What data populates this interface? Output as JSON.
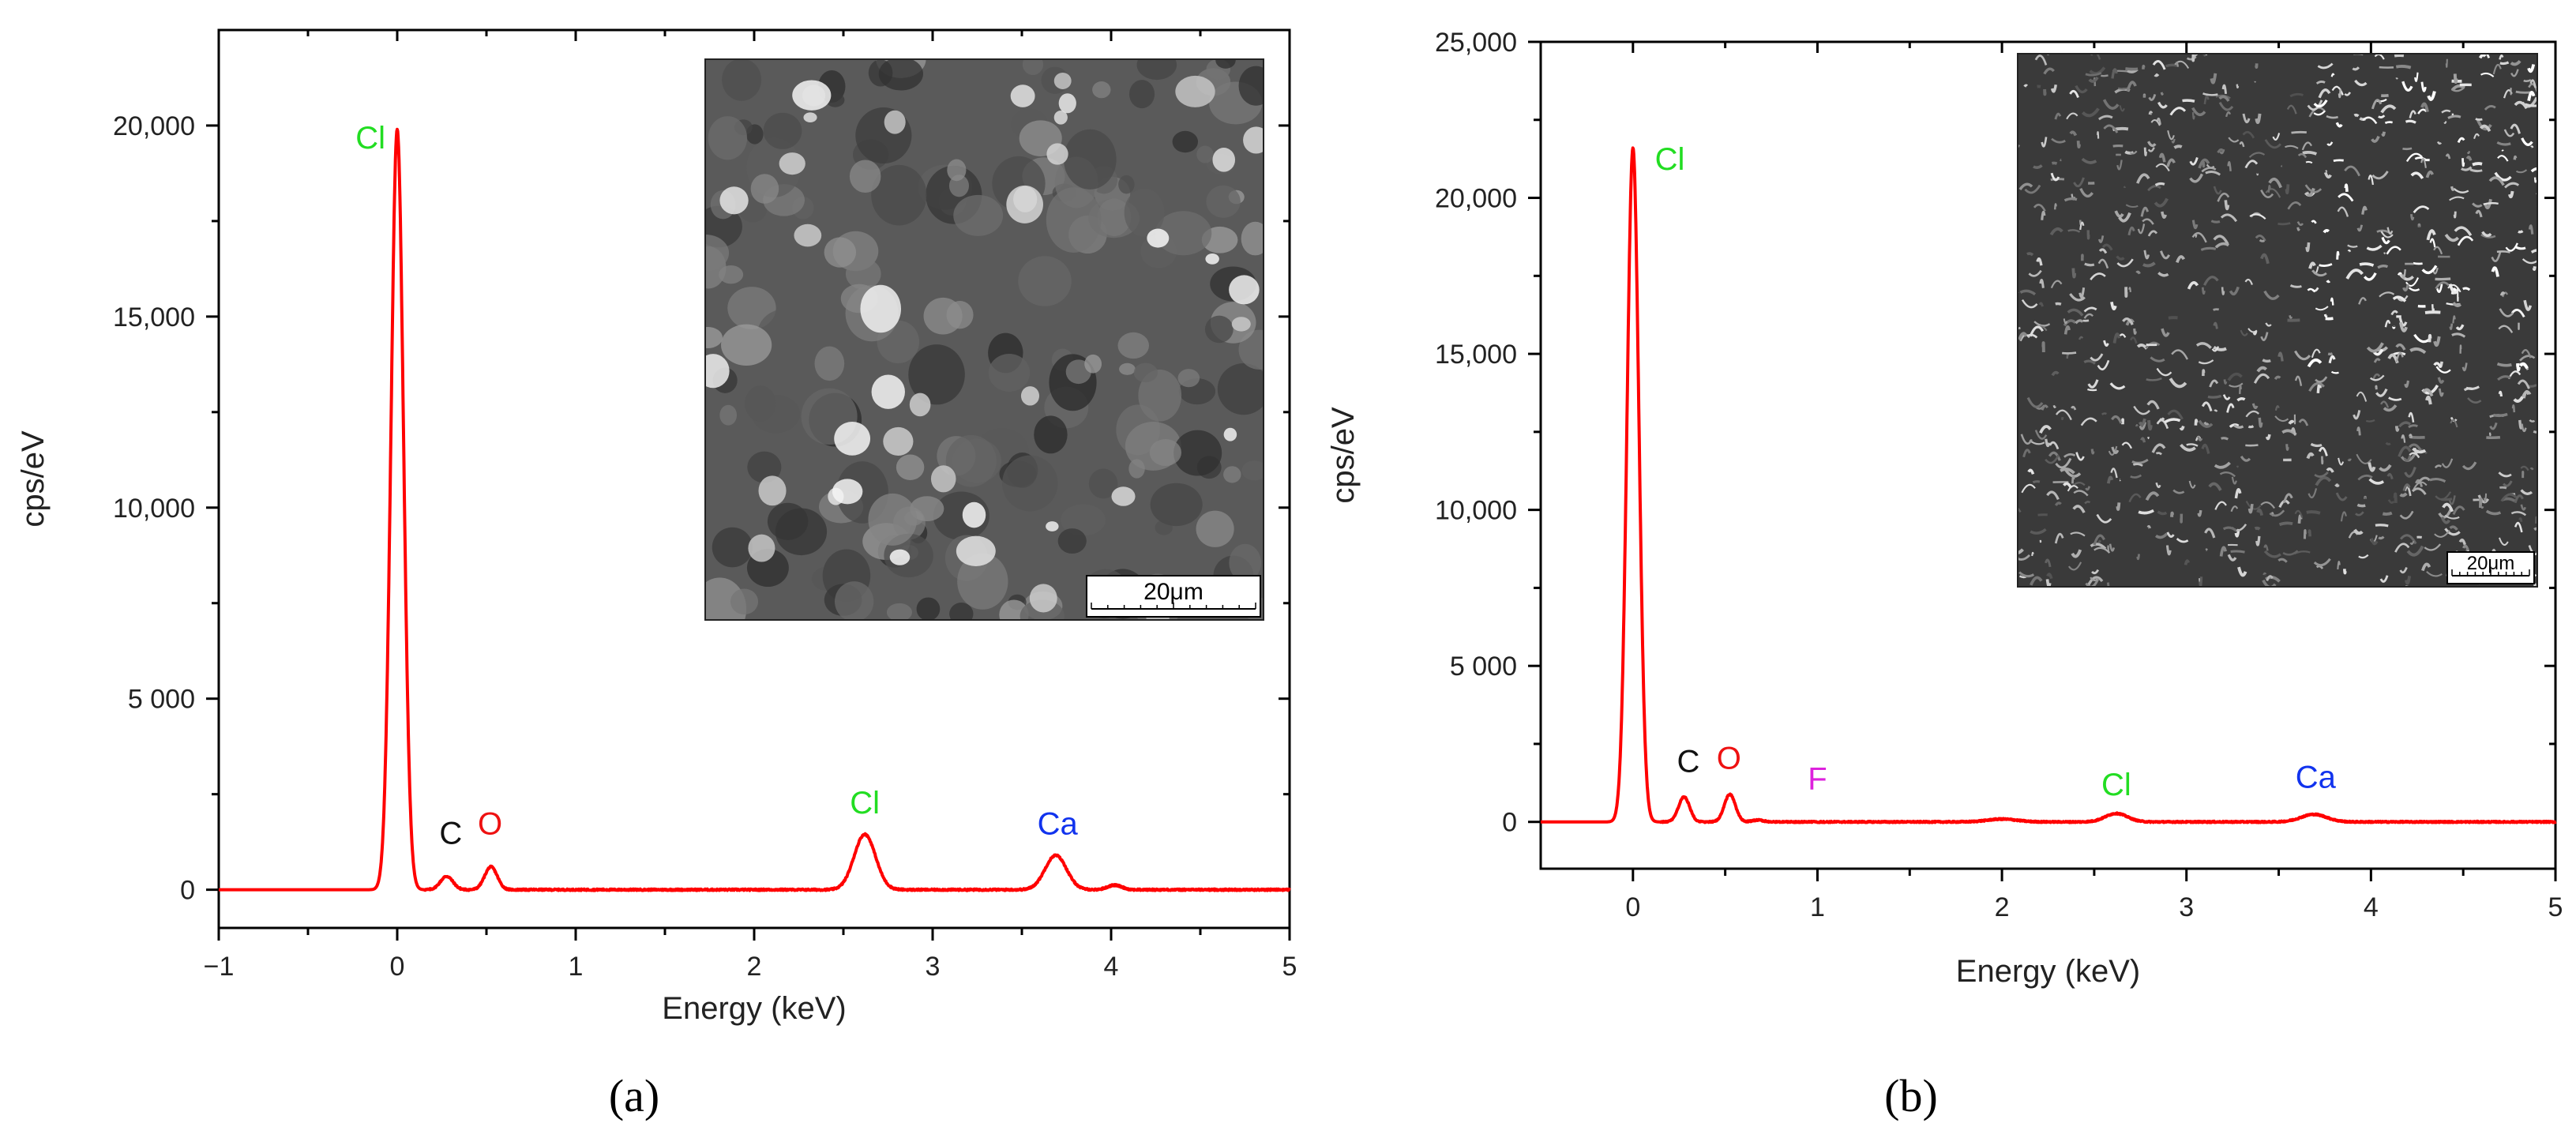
{
  "panels": [
    {
      "caption": "(a)",
      "chart_data": {
        "type": "line",
        "xlabel": "Energy (keV)",
        "ylabel": "cps/eV",
        "xlim": [
          -1,
          5
        ],
        "ylim": [
          -1000,
          22500
        ],
        "x_ticks": [
          -1,
          0,
          1,
          2,
          3,
          4,
          5
        ],
        "x_tick_labels": [
          "−1",
          "0",
          "1",
          "2",
          "3",
          "4",
          "5"
        ],
        "y_ticks": [
          0,
          5000,
          10000,
          15000,
          20000
        ],
        "y_tick_labels": [
          "0",
          "5 000",
          "10,000",
          "15,000",
          "20,000"
        ],
        "grid": false,
        "series_color": "#ff0000",
        "baseline": 0,
        "peaks": [
          {
            "x": 0.0,
            "y": 19900,
            "width": 0.035
          },
          {
            "x": 0.277,
            "y": 350,
            "width": 0.035
          },
          {
            "x": 0.525,
            "y": 600,
            "width": 0.035
          },
          {
            "x": 2.62,
            "y": 1450,
            "width": 0.06
          },
          {
            "x": 3.69,
            "y": 900,
            "width": 0.06
          },
          {
            "x": 4.02,
            "y": 120,
            "width": 0.04
          }
        ],
        "peak_labels": [
          {
            "text": "Cl",
            "x": -0.15,
            "y": 19400,
            "color": "#22dd22"
          },
          {
            "text": "C",
            "x": 0.3,
            "y": 1200,
            "color": "#111111"
          },
          {
            "text": "O",
            "x": 0.52,
            "y": 1450,
            "color": "#ee1111"
          },
          {
            "text": "Cl",
            "x": 2.62,
            "y": 2000,
            "color": "#22dd22"
          },
          {
            "text": "Ca",
            "x": 3.7,
            "y": 1450,
            "color": "#1133ee"
          }
        ],
        "inset": {
          "scale_bar_label": "20μm",
          "texture": "smooth"
        }
      }
    },
    {
      "caption": "(b)",
      "chart_data": {
        "type": "line",
        "xlabel": "Energy (keV)",
        "ylabel": "cps/eV",
        "xlim": [
          -0.5,
          5
        ],
        "ylim": [
          -1500,
          25000
        ],
        "x_ticks": [
          0,
          1,
          2,
          3,
          4,
          5
        ],
        "x_tick_labels": [
          "0",
          "1",
          "2",
          "3",
          "4",
          "5"
        ],
        "y_ticks": [
          0,
          5000,
          10000,
          15000,
          20000,
          25000
        ],
        "y_tick_labels": [
          "0",
          "5 000",
          "10,000",
          "15,000",
          "20,000",
          "25,000"
        ],
        "grid": false,
        "series_color": "#ff0000",
        "baseline": 0,
        "peaks": [
          {
            "x": 0.0,
            "y": 21600,
            "width": 0.032
          },
          {
            "x": 0.277,
            "y": 800,
            "width": 0.03
          },
          {
            "x": 0.525,
            "y": 880,
            "width": 0.03
          },
          {
            "x": 0.677,
            "y": 60,
            "width": 0.03
          },
          {
            "x": 2.0,
            "y": 90,
            "width": 0.08
          },
          {
            "x": 2.62,
            "y": 270,
            "width": 0.06
          },
          {
            "x": 3.69,
            "y": 240,
            "width": 0.07
          }
        ],
        "peak_labels": [
          {
            "text": "Cl",
            "x": 0.2,
            "y": 20900,
            "color": "#22dd22"
          },
          {
            "text": "C",
            "x": 0.3,
            "y": 1600,
            "color": "#111111"
          },
          {
            "text": "O",
            "x": 0.52,
            "y": 1700,
            "color": "#ee1111"
          },
          {
            "text": "F",
            "x": 1.0,
            "y": 1050,
            "color": "#dd22dd"
          },
          {
            "text": "Cl",
            "x": 2.62,
            "y": 850,
            "color": "#22dd22"
          },
          {
            "text": "Ca",
            "x": 3.7,
            "y": 1100,
            "color": "#1133ee"
          }
        ],
        "inset": {
          "scale_bar_label": "20μm",
          "texture": "wrinkled"
        }
      }
    }
  ]
}
